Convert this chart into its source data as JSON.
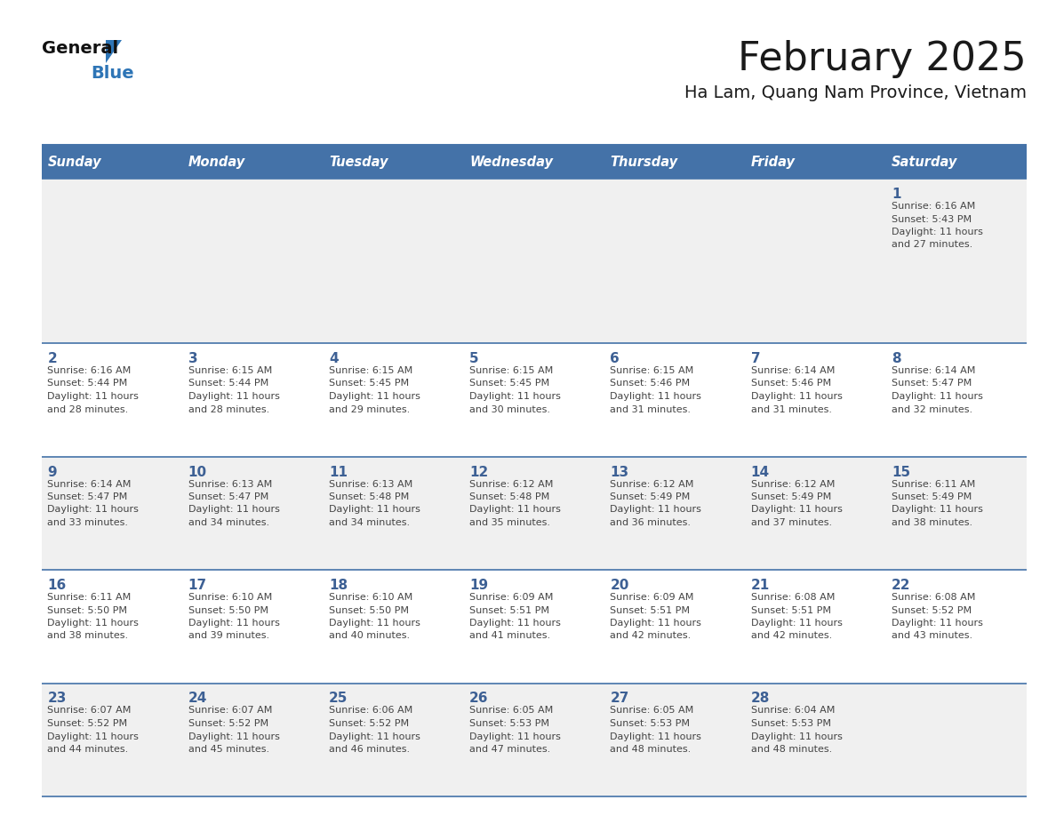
{
  "title": "February 2025",
  "subtitle": "Ha Lam, Quang Nam Province, Vietnam",
  "days_of_week": [
    "Sunday",
    "Monday",
    "Tuesday",
    "Wednesday",
    "Thursday",
    "Friday",
    "Saturday"
  ],
  "header_bg": "#4472A8",
  "header_text": "#FFFFFF",
  "row_bg_light": "#F0F0F0",
  "row_bg_white": "#FFFFFF",
  "day_number_color": "#3D6094",
  "cell_text_color": "#444444",
  "border_color": "#4472A8",
  "title_color": "#1a1a1a",
  "subtitle_color": "#1a1a1a",
  "logo_general_color": "#111111",
  "logo_blue_color": "#2E75B6",
  "calendar_data": [
    [
      null,
      null,
      null,
      null,
      null,
      null,
      {
        "day": 1,
        "sunrise": "6:16 AM",
        "sunset": "5:43 PM",
        "daylight": "11 hours and 27 minutes."
      }
    ],
    [
      {
        "day": 2,
        "sunrise": "6:16 AM",
        "sunset": "5:44 PM",
        "daylight": "11 hours and 28 minutes."
      },
      {
        "day": 3,
        "sunrise": "6:15 AM",
        "sunset": "5:44 PM",
        "daylight": "11 hours and 28 minutes."
      },
      {
        "day": 4,
        "sunrise": "6:15 AM",
        "sunset": "5:45 PM",
        "daylight": "11 hours and 29 minutes."
      },
      {
        "day": 5,
        "sunrise": "6:15 AM",
        "sunset": "5:45 PM",
        "daylight": "11 hours and 30 minutes."
      },
      {
        "day": 6,
        "sunrise": "6:15 AM",
        "sunset": "5:46 PM",
        "daylight": "11 hours and 31 minutes."
      },
      {
        "day": 7,
        "sunrise": "6:14 AM",
        "sunset": "5:46 PM",
        "daylight": "11 hours and 31 minutes."
      },
      {
        "day": 8,
        "sunrise": "6:14 AM",
        "sunset": "5:47 PM",
        "daylight": "11 hours and 32 minutes."
      }
    ],
    [
      {
        "day": 9,
        "sunrise": "6:14 AM",
        "sunset": "5:47 PM",
        "daylight": "11 hours and 33 minutes."
      },
      {
        "day": 10,
        "sunrise": "6:13 AM",
        "sunset": "5:47 PM",
        "daylight": "11 hours and 34 minutes."
      },
      {
        "day": 11,
        "sunrise": "6:13 AM",
        "sunset": "5:48 PM",
        "daylight": "11 hours and 34 minutes."
      },
      {
        "day": 12,
        "sunrise": "6:12 AM",
        "sunset": "5:48 PM",
        "daylight": "11 hours and 35 minutes."
      },
      {
        "day": 13,
        "sunrise": "6:12 AM",
        "sunset": "5:49 PM",
        "daylight": "11 hours and 36 minutes."
      },
      {
        "day": 14,
        "sunrise": "6:12 AM",
        "sunset": "5:49 PM",
        "daylight": "11 hours and 37 minutes."
      },
      {
        "day": 15,
        "sunrise": "6:11 AM",
        "sunset": "5:49 PM",
        "daylight": "11 hours and 38 minutes."
      }
    ],
    [
      {
        "day": 16,
        "sunrise": "6:11 AM",
        "sunset": "5:50 PM",
        "daylight": "11 hours and 38 minutes."
      },
      {
        "day": 17,
        "sunrise": "6:10 AM",
        "sunset": "5:50 PM",
        "daylight": "11 hours and 39 minutes."
      },
      {
        "day": 18,
        "sunrise": "6:10 AM",
        "sunset": "5:50 PM",
        "daylight": "11 hours and 40 minutes."
      },
      {
        "day": 19,
        "sunrise": "6:09 AM",
        "sunset": "5:51 PM",
        "daylight": "11 hours and 41 minutes."
      },
      {
        "day": 20,
        "sunrise": "6:09 AM",
        "sunset": "5:51 PM",
        "daylight": "11 hours and 42 minutes."
      },
      {
        "day": 21,
        "sunrise": "6:08 AM",
        "sunset": "5:51 PM",
        "daylight": "11 hours and 42 minutes."
      },
      {
        "day": 22,
        "sunrise": "6:08 AM",
        "sunset": "5:52 PM",
        "daylight": "11 hours and 43 minutes."
      }
    ],
    [
      {
        "day": 23,
        "sunrise": "6:07 AM",
        "sunset": "5:52 PM",
        "daylight": "11 hours and 44 minutes."
      },
      {
        "day": 24,
        "sunrise": "6:07 AM",
        "sunset": "5:52 PM",
        "daylight": "11 hours and 45 minutes."
      },
      {
        "day": 25,
        "sunrise": "6:06 AM",
        "sunset": "5:52 PM",
        "daylight": "11 hours and 46 minutes."
      },
      {
        "day": 26,
        "sunrise": "6:05 AM",
        "sunset": "5:53 PM",
        "daylight": "11 hours and 47 minutes."
      },
      {
        "day": 27,
        "sunrise": "6:05 AM",
        "sunset": "5:53 PM",
        "daylight": "11 hours and 48 minutes."
      },
      {
        "day": 28,
        "sunrise": "6:04 AM",
        "sunset": "5:53 PM",
        "daylight": "11 hours and 48 minutes."
      },
      null
    ]
  ],
  "row_bg_colors": [
    "#F0F0F0",
    "#FFFFFF",
    "#F0F0F0",
    "#FFFFFF",
    "#F0F0F0"
  ]
}
